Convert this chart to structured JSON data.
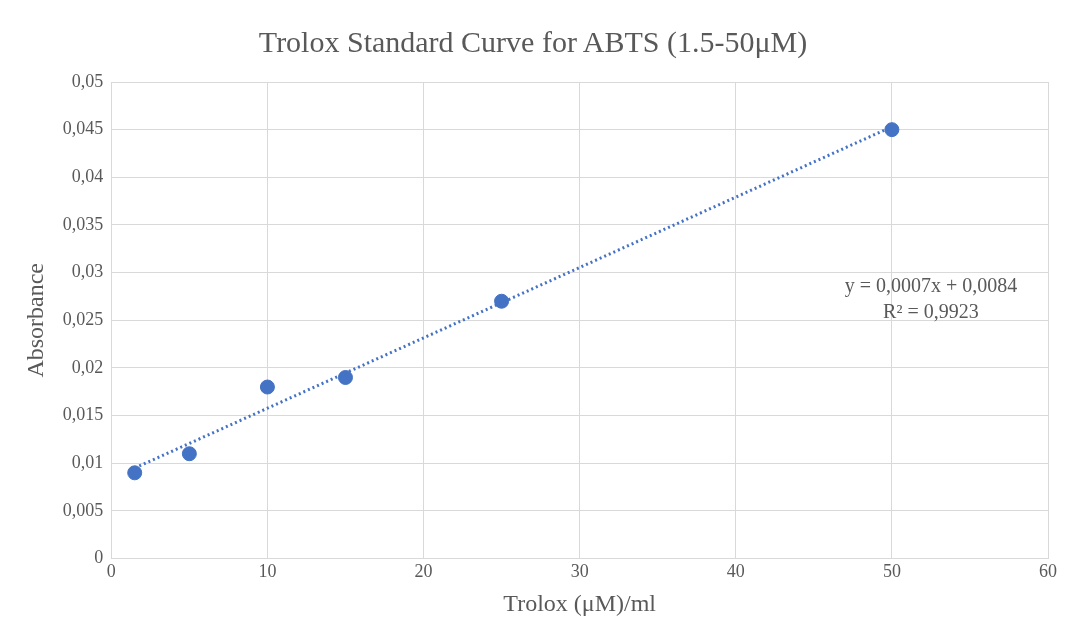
{
  "chart_data": {
    "type": "scatter",
    "title": "Trolox Standard Curve for ABTS (1.5-50μM)",
    "xlabel": "Trolox (μM)/ml",
    "ylabel": "Absorbance",
    "x": [
      1.5,
      5,
      10,
      15,
      25,
      50
    ],
    "series": [
      {
        "type": "scatter",
        "color": "#4472c4",
        "marker": "circle",
        "values": [
          0.009,
          0.011,
          0.018,
          0.019,
          0.027,
          0.045
        ]
      },
      {
        "type": "line",
        "color": "#4472c4",
        "marker": "none",
        "line_style": "dotted",
        "x": [
          1.5,
          50
        ],
        "values": [
          0.0095,
          0.0453
        ]
      }
    ],
    "xlim": [
      0,
      60
    ],
    "xticks": [
      0,
      10,
      20,
      30,
      40,
      50,
      60
    ],
    "ylim": [
      0,
      0.05
    ],
    "yticks": [
      {
        "value": 0,
        "label": "0"
      },
      {
        "value": 0.005,
        "label": "0,005"
      },
      {
        "value": 0.01,
        "label": "0,01"
      },
      {
        "value": 0.015,
        "label": "0,015"
      },
      {
        "value": 0.02,
        "label": "0,02"
      },
      {
        "value": 0.025,
        "label": "0,025"
      },
      {
        "value": 0.03,
        "label": "0,03"
      },
      {
        "value": 0.035,
        "label": "0,035"
      },
      {
        "value": 0.04,
        "label": "0,04"
      },
      {
        "value": 0.045,
        "label": "0,045"
      },
      {
        "value": 0.05,
        "label": "0,05"
      }
    ],
    "annotations": [
      "y = 0,0007x + 0,0084",
      "R² = 0,9923"
    ],
    "grid": true,
    "legend": false
  }
}
